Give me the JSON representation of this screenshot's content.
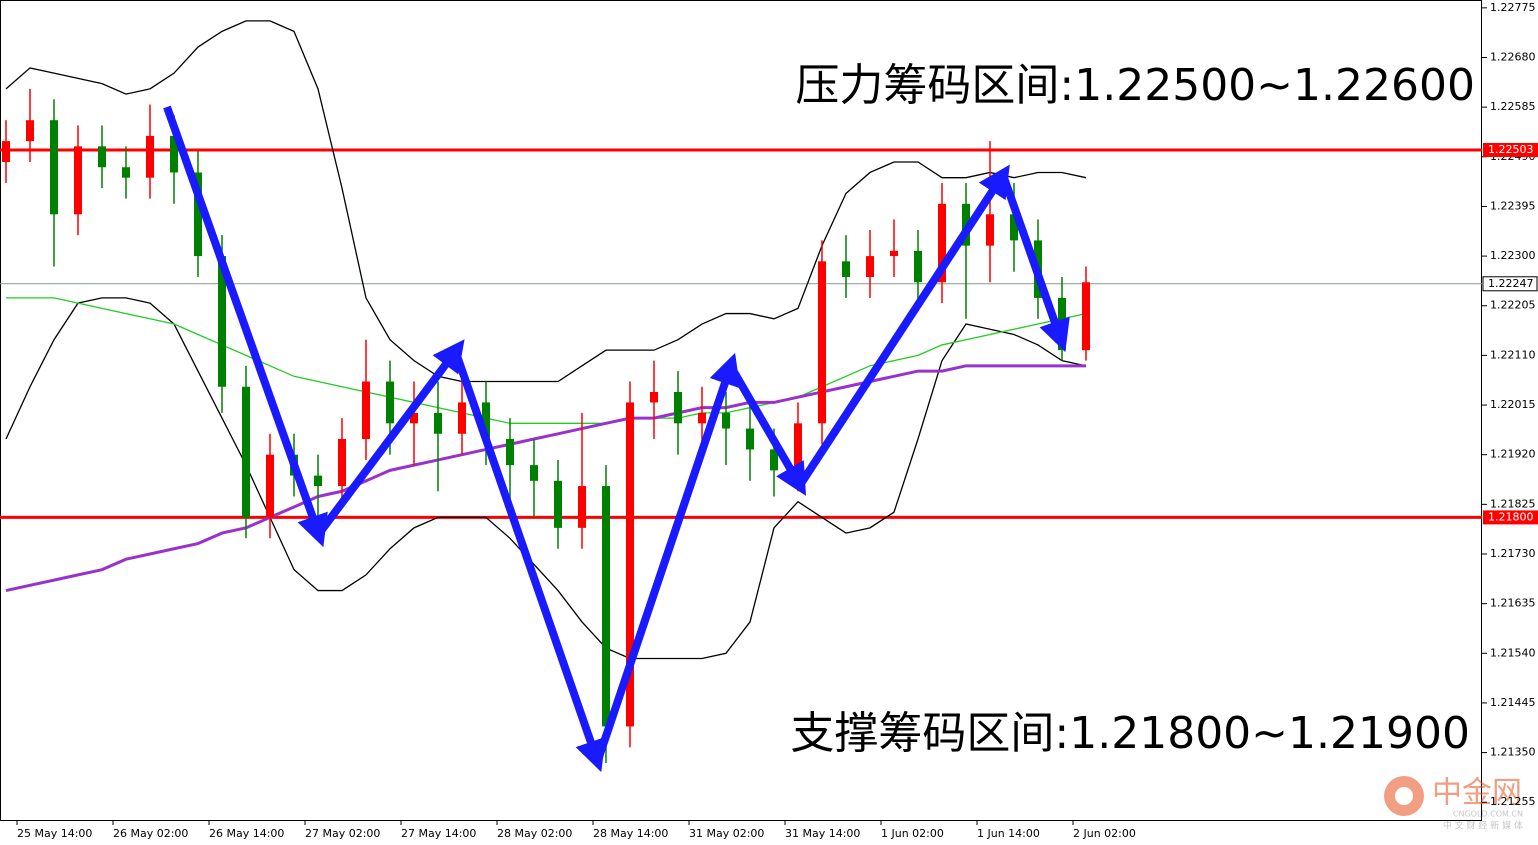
{
  "chart_data": {
    "type": "candlestick",
    "ylim": [
      1.21221,
      1.2279
    ],
    "yticks": [
      1.22775,
      {
        "value": 1.2268,
        "label": "1.22680"
      },
      1.22585,
      {
        "value": 1.2249,
        "label": "1.22490"
      },
      1.22395,
      {
        "value": 1.223,
        "label": "1.22300"
      },
      1.22205,
      {
        "value": 1.2211,
        "label": "1.22110"
      },
      1.22015,
      {
        "value": 1.2192,
        "label": "1.21920"
      },
      1.21825,
      {
        "value": 1.2173,
        "label": "1.21730"
      },
      1.21635,
      {
        "value": 1.2154,
        "label": "1.21540"
      },
      1.21445,
      {
        "value": 1.2135,
        "label": "1.21350"
      },
      1.21255
    ],
    "x_labels": [
      "25 May 14:00",
      "26 May 02:00",
      "26 May 14:00",
      "27 May 02:00",
      "27 May 14:00",
      "28 May 02:00",
      "28 May 14:00",
      "31 May 02:00",
      "31 May 14:00",
      "1 Jun 02:00",
      "1 Jun 14:00",
      "2 Jun 02:00"
    ],
    "up_color": "#ff0000",
    "down_color": "#008000",
    "candles": {
      "open": [
        1.2248,
        1.2252,
        1.2256,
        1.2238,
        1.2251,
        1.2247,
        1.2245,
        1.2253,
        1.2246,
        1.223,
        1.2205,
        1.218,
        1.2192,
        1.2188,
        1.2186,
        1.2195,
        1.2206,
        1.2198,
        1.22,
        1.2196,
        1.2202,
        1.2195,
        1.219,
        1.2187,
        1.2178,
        1.2186,
        1.214,
        1.2202,
        1.2204,
        1.2198,
        1.22,
        1.2197,
        1.2193,
        1.2189,
        1.2198,
        1.2229,
        1.2226,
        1.223,
        1.2231,
        1.2225,
        1.224,
        1.2232,
        1.2238,
        1.2233,
        1.2222,
        1.2212
      ],
      "high": [
        1.2256,
        1.2262,
        1.226,
        1.2255,
        1.2255,
        1.2251,
        1.2259,
        1.2257,
        1.225,
        1.2234,
        1.2209,
        1.2196,
        1.2196,
        1.2192,
        1.2199,
        1.2214,
        1.221,
        1.2206,
        1.2206,
        1.2207,
        1.2206,
        1.2199,
        1.2195,
        1.2191,
        1.22,
        1.219,
        1.2206,
        1.221,
        1.2208,
        1.2205,
        1.2204,
        1.2202,
        1.2197,
        1.2202,
        1.2233,
        1.2234,
        1.2235,
        1.2237,
        1.2235,
        1.2244,
        1.2244,
        1.2252,
        1.2244,
        1.2237,
        1.2226,
        1.2228
      ],
      "low": [
        1.2244,
        1.2248,
        1.2228,
        1.2234,
        1.2243,
        1.2241,
        1.2241,
        1.224,
        1.2226,
        1.22,
        1.2176,
        1.2176,
        1.2184,
        1.2178,
        1.2182,
        1.2191,
        1.2192,
        1.219,
        1.2185,
        1.2192,
        1.219,
        1.2183,
        1.218,
        1.2174,
        1.2174,
        1.2133,
        1.2136,
        1.2195,
        1.2192,
        1.2193,
        1.219,
        1.2187,
        1.2184,
        1.2185,
        1.2194,
        1.2222,
        1.2222,
        1.2226,
        1.222,
        1.2221,
        1.2218,
        1.2225,
        1.2227,
        1.2218,
        1.221,
        1.221
      ],
      "close": [
        1.2252,
        1.2256,
        1.2238,
        1.2251,
        1.2247,
        1.2245,
        1.2253,
        1.2246,
        1.223,
        1.2205,
        1.218,
        1.2192,
        1.2188,
        1.2186,
        1.2195,
        1.2206,
        1.2198,
        1.22,
        1.2196,
        1.2202,
        1.2195,
        1.219,
        1.2187,
        1.2178,
        1.2186,
        1.214,
        1.2202,
        1.2204,
        1.2198,
        1.22,
        1.2197,
        1.2193,
        1.2189,
        1.2198,
        1.2229,
        1.2226,
        1.223,
        1.2231,
        1.2225,
        1.224,
        1.2232,
        1.2238,
        1.2233,
        1.2222,
        1.2212,
        1.2225
      ]
    },
    "series": [
      {
        "color": "#000000",
        "values": [
          1.2262,
          1.2266,
          1.2265,
          1.2264,
          1.2263,
          1.2261,
          1.2262,
          1.2265,
          1.227,
          1.2273,
          1.2275,
          1.2275,
          1.2273,
          1.2262,
          1.2243,
          1.2222,
          1.2214,
          1.221,
          1.2207,
          1.2206,
          1.2206,
          1.2206,
          1.2206,
          1.2206,
          1.2209,
          1.2212,
          1.2212,
          1.2212,
          1.2214,
          1.2217,
          1.2219,
          1.2219,
          1.2218,
          1.222,
          1.2232,
          1.2242,
          1.2246,
          1.2248,
          1.2248,
          1.2245,
          1.2245,
          1.2246,
          1.2245,
          1.2246,
          1.2246,
          1.2245
        ]
      },
      {
        "color": "#000000",
        "values": [
          1.2195,
          1.2205,
          1.2214,
          1.2221,
          1.2222,
          1.2222,
          1.2221,
          1.2217,
          1.2208,
          1.2199,
          1.219,
          1.218,
          1.217,
          1.2166,
          1.2166,
          1.2169,
          1.2174,
          1.2178,
          1.218,
          1.218,
          1.218,
          1.2176,
          1.2171,
          1.2166,
          1.216,
          1.2155,
          1.2153,
          1.2153,
          1.2153,
          1.2153,
          1.2154,
          1.216,
          1.2178,
          1.2183,
          1.218,
          1.2177,
          1.2178,
          1.2181,
          1.2195,
          1.221,
          1.2217,
          1.2216,
          1.2215,
          1.2213,
          1.221,
          1.2209
        ]
      },
      {
        "color": "#22cc22",
        "values": [
          1.2222,
          1.2222,
          1.2222,
          1.2221,
          1.222,
          1.2219,
          1.2218,
          1.2217,
          1.2215,
          1.2213,
          1.2211,
          1.2209,
          1.2207,
          1.2206,
          1.2205,
          1.2204,
          1.2203,
          1.2202,
          1.2201,
          1.22,
          1.2199,
          1.2198,
          1.2198,
          1.2198,
          1.2198,
          1.2198,
          1.2199,
          1.2199,
          1.2199,
          1.22,
          1.22,
          1.2201,
          1.2202,
          1.2203,
          1.2205,
          1.2207,
          1.2209,
          1.221,
          1.2211,
          1.2213,
          1.2214,
          1.2215,
          1.2216,
          1.2217,
          1.2218,
          1.2219
        ]
      },
      {
        "color": "#9932cc",
        "values": [
          1.2166,
          1.2167,
          1.2168,
          1.2169,
          1.217,
          1.2172,
          1.2173,
          1.2174,
          1.2175,
          1.2177,
          1.2178,
          1.218,
          1.2182,
          1.2184,
          1.2185,
          1.2187,
          1.2189,
          1.219,
          1.2191,
          1.2192,
          1.2193,
          1.2194,
          1.2195,
          1.2196,
          1.2197,
          1.2198,
          1.2199,
          1.2199,
          1.22,
          1.2201,
          1.2201,
          1.2202,
          1.2202,
          1.2203,
          1.2204,
          1.2205,
          1.2206,
          1.2207,
          1.2208,
          1.2208,
          1.2209,
          1.2209,
          1.2209,
          1.2209,
          1.2209,
          1.2209
        ]
      }
    ],
    "levels": [
      {
        "value": 1.22503,
        "label": "1.22503",
        "color": "#ff0000"
      },
      {
        "value": 1.218,
        "label": "1.21800",
        "color": "#ff0000"
      }
    ],
    "current_price": {
      "value": 1.22247,
      "label": "1.22247"
    },
    "annotations": [
      "压力筹码区间:1.22500~1.22600",
      "支撑筹码区间:1.21800~1.21900"
    ]
  },
  "watermark": {
    "logo": "中金网",
    "url": "CNGOLD.COM.CN",
    "slogan": "中 文 财 经 新 媒 体"
  }
}
